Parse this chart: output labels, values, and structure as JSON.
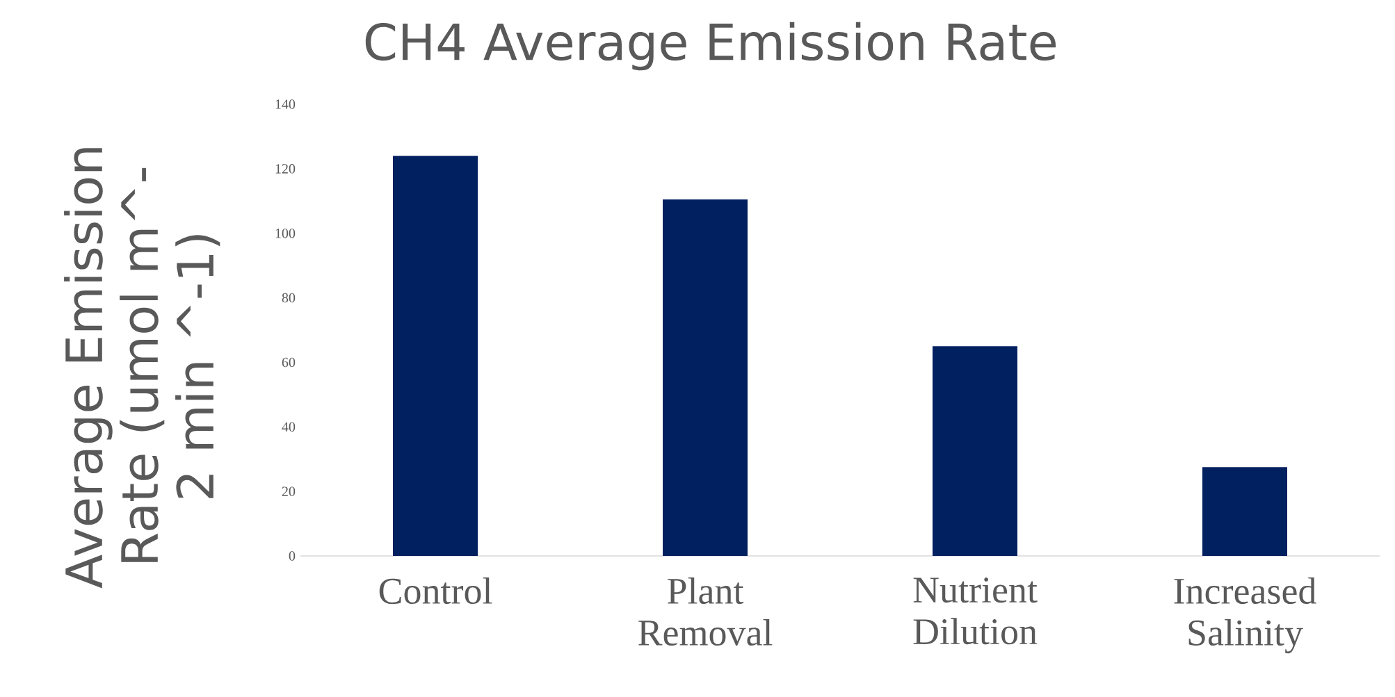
{
  "chart_data": {
    "type": "bar",
    "title": "CH4 Average Emission Rate",
    "ylabel": "Average Emission Rate (umol m^-2 min ^-1)",
    "categories": [
      "Control",
      "Plant Removal",
      "Nutrient Dilution",
      "Increased Salinity"
    ],
    "values": [
      124,
      110.5,
      65,
      27.5
    ],
    "color": "#002060",
    "ylim": [
      0,
      140
    ],
    "yticks": [
      0,
      20,
      40,
      60,
      80,
      100,
      120,
      140
    ]
  }
}
